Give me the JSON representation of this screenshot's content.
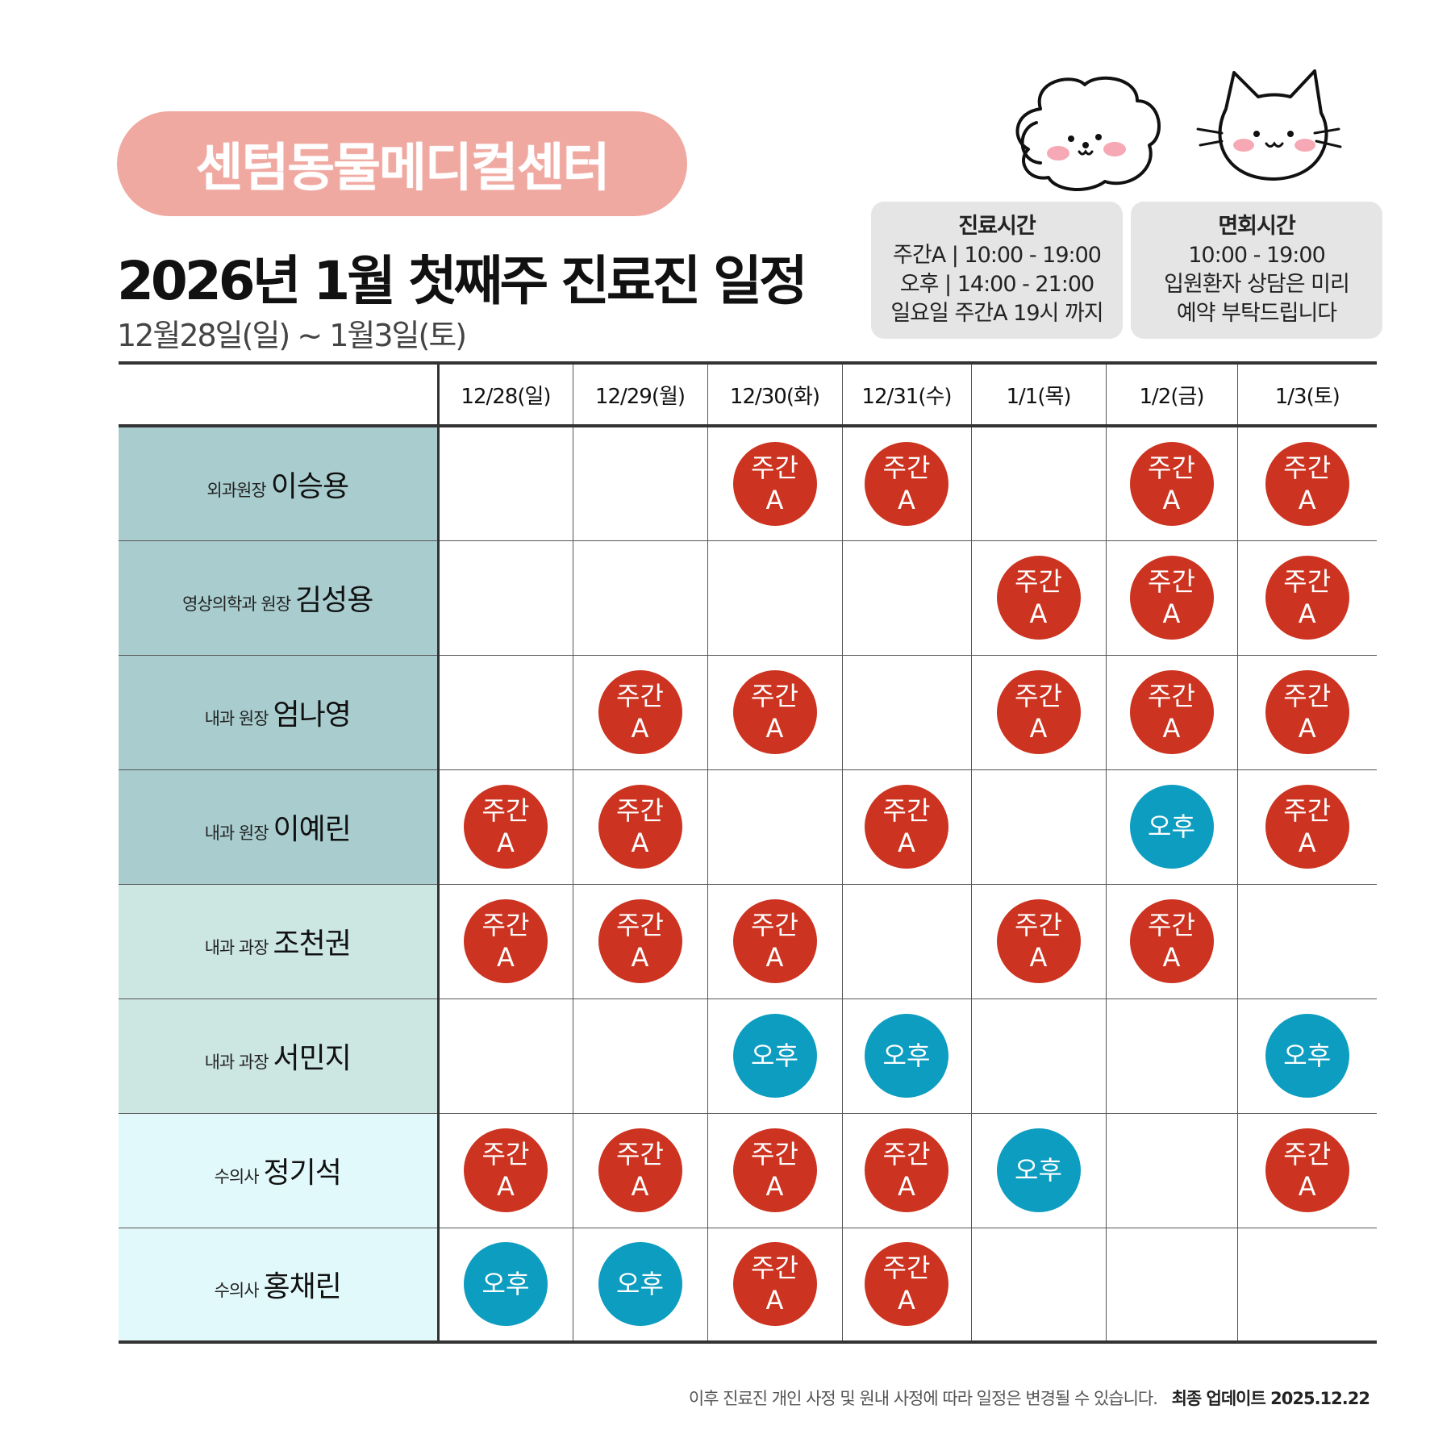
{
  "header": {
    "center_name": "센텀동물메디컬센터",
    "title": "2026년 1월 첫째주 진료진 일정",
    "subtitle": "12월28일(일) ~ 1월3일(토)"
  },
  "info": {
    "clinic_hours": {
      "title": "진료시간",
      "lines": [
        "주간A | 10:00 - 19:00",
        "오후 | 14:00 - 21:00",
        "일요일 주간A 19시 까지"
      ]
    },
    "visit_hours": {
      "title": "면회시간",
      "lines": [
        "10:00 - 19:00",
        "입원환자 상담은 미리",
        "예약 부탁드립니다"
      ]
    }
  },
  "colors": {
    "pill": "#f0a9a1",
    "shift_day": "#cc3320",
    "shift_pm": "#0d9dc0",
    "row_dark": "#a9cdcf",
    "row_mid": "#cce6e2",
    "row_light": "#e2f9fb"
  },
  "schedule": {
    "dates": [
      "12/28(일)",
      "12/29(월)",
      "12/30(화)",
      "12/31(수)",
      "1/1(목)",
      "1/2(금)",
      "1/3(토)"
    ],
    "shift_labels": {
      "day_line1": "주간",
      "day_line2": "A",
      "pm": "오후"
    },
    "rows": [
      {
        "role": "외과원장",
        "name": "이승용",
        "shade": "dark",
        "shifts": [
          "",
          "",
          "day",
          "day",
          "",
          "day",
          "day"
        ]
      },
      {
        "role": "영상의학과 원장",
        "name": "김성용",
        "shade": "dark",
        "shifts": [
          "",
          "",
          "",
          "",
          "day",
          "day",
          "day"
        ]
      },
      {
        "role": "내과 원장",
        "name": "엄나영",
        "shade": "dark",
        "shifts": [
          "",
          "day",
          "day",
          "",
          "day",
          "day",
          "day"
        ]
      },
      {
        "role": "내과 원장",
        "name": "이예린",
        "shade": "dark",
        "shifts": [
          "day",
          "day",
          "",
          "day",
          "",
          "pm",
          "day"
        ]
      },
      {
        "role": "내과 과장",
        "name": "조천권",
        "shade": "mid",
        "shifts": [
          "day",
          "day",
          "day",
          "",
          "day",
          "day",
          ""
        ]
      },
      {
        "role": "내과 과장",
        "name": "서민지",
        "shade": "mid",
        "shifts": [
          "",
          "",
          "pm",
          "pm",
          "",
          "",
          "pm"
        ]
      },
      {
        "role": "수의사",
        "name": "정기석",
        "shade": "light",
        "shifts": [
          "day",
          "day",
          "day",
          "day",
          "pm",
          "",
          "day"
        ]
      },
      {
        "role": "수의사",
        "name": "홍채린",
        "shade": "light",
        "shifts": [
          "pm",
          "pm",
          "day",
          "day",
          "",
          "",
          ""
        ]
      }
    ]
  },
  "footer": {
    "note": "이후 진료진 개인 사정 및 원내 사정에 따라 일정은 변경될 수 있습니다.",
    "update": "최종 업데이트  2025.12.22"
  },
  "icons": [
    "dog-mascot-icon",
    "cat-mascot-icon"
  ]
}
